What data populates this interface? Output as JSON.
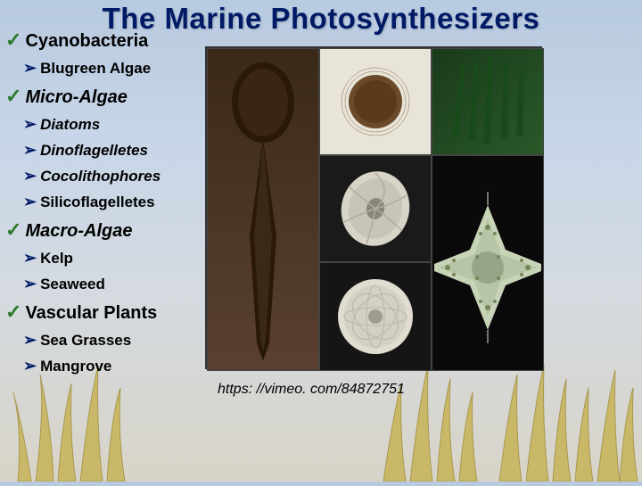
{
  "title": "The Marine Photosynthesizers",
  "url": "https: //vimeo. com/84872751",
  "groups": [
    {
      "label": "Cyanobacteria",
      "style": "normal",
      "first": true,
      "items": [
        {
          "label": "Blugreen Algae",
          "style": "normal"
        }
      ]
    },
    {
      "label": "Micro-Algae",
      "style": "italic",
      "items": [
        {
          "label": "Diatoms",
          "style": "italic"
        },
        {
          "label": "Dinoflagelletes",
          "style": "italic"
        },
        {
          "label": "Cocolithophores",
          "style": "italic"
        },
        {
          "label": "Silicoflagelletes",
          "style": "normal"
        }
      ]
    },
    {
      "label": "Macro-Algae",
      "style": "italic",
      "items": [
        {
          "label": "Kelp",
          "style": "normal"
        },
        {
          "label": "Seaweed",
          "style": "normal"
        }
      ]
    },
    {
      "label": "Vascular Plants",
      "style": "normal",
      "items": [
        {
          "label": "Sea Grasses",
          "style": "normal"
        },
        {
          "label": "Mangrove",
          "style": "normal"
        }
      ]
    }
  ],
  "colors": {
    "title": "#001a66",
    "check": "#2a7a2a",
    "arrow": "#001a66"
  }
}
